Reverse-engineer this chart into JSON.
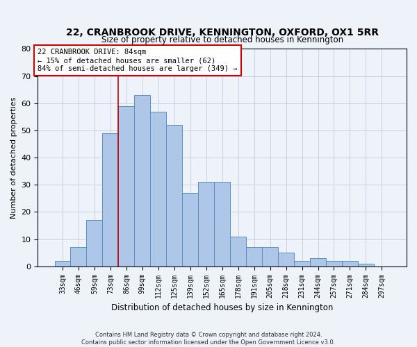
{
  "title": "22, CRANBROOK DRIVE, KENNINGTON, OXFORD, OX1 5RR",
  "subtitle": "Size of property relative to detached houses in Kennington",
  "xlabel": "Distribution of detached houses by size in Kennington",
  "ylabel": "Number of detached properties",
  "bin_labels": [
    "33sqm",
    "46sqm",
    "59sqm",
    "73sqm",
    "86sqm",
    "99sqm",
    "112sqm",
    "125sqm",
    "139sqm",
    "152sqm",
    "165sqm",
    "178sqm",
    "191sqm",
    "205sqm",
    "218sqm",
    "231sqm",
    "244sqm",
    "257sqm",
    "271sqm",
    "284sqm",
    "297sqm"
  ],
  "bar_values": [
    2,
    7,
    17,
    49,
    59,
    63,
    57,
    52,
    27,
    31,
    31,
    11,
    7,
    7,
    5,
    2,
    3,
    2,
    2,
    1,
    0
  ],
  "bar_color": "#aec6e8",
  "bar_edge_color": "#5a8fc0",
  "vline_x_idx": 4,
  "vline_color": "#cc0000",
  "annotation_line1": "22 CRANBROOK DRIVE: 84sqm",
  "annotation_line2": "← 15% of detached houses are smaller (62)",
  "annotation_line3": "84% of semi-detached houses are larger (349) →",
  "annotation_box_color": "#ffffff",
  "annotation_box_edge": "#cc0000",
  "ylim": [
    0,
    80
  ],
  "yticks": [
    0,
    10,
    20,
    30,
    40,
    50,
    60,
    70,
    80
  ],
  "footer": "Contains HM Land Registry data © Crown copyright and database right 2024.\nContains public sector information licensed under the Open Government Licence v3.0.",
  "bg_color": "#eef2f9",
  "plot_bg_color": "#eef2f9",
  "grid_color": "#c8d0de"
}
